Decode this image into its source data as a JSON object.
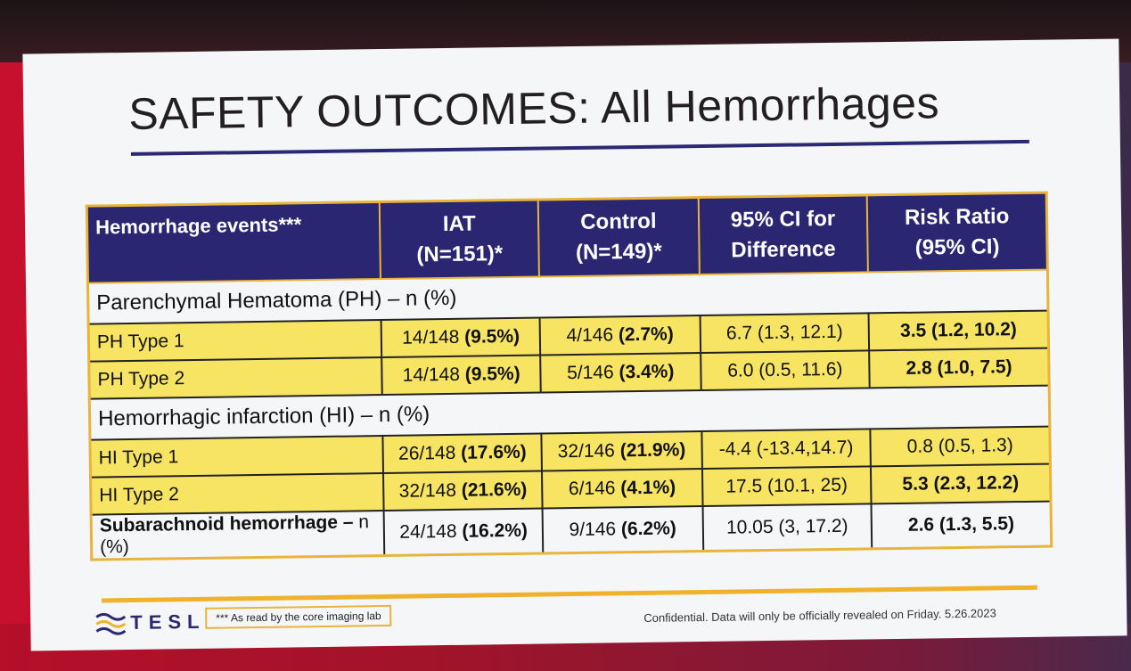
{
  "slide": {
    "title": "SAFETY OUTCOMES: All Hemorrhages",
    "colors": {
      "header_bg": "#2b2672",
      "row_yellow": "#f7e463",
      "accent_gold": "#e8b43a",
      "title_rule": "#2b2874"
    }
  },
  "table": {
    "headers": {
      "events": "Hemorrhage events***",
      "iat_line1": "IAT",
      "iat_line2": "(N=151)*",
      "control_line1": "Control",
      "control_line2": "(N=149)*",
      "ci_line1": "95% CI for",
      "ci_line2": "Difference",
      "rr_line1": "Risk Ratio",
      "rr_line2": "(95% CI)"
    },
    "section_ph": "Parenchymal Hematoma (PH) – n (%)",
    "ph_type1": {
      "label": "PH Type 1",
      "iat_n": "14/148 ",
      "iat_pct": "(9.5%)",
      "control_n": "4/146 ",
      "control_pct": "(2.7%)",
      "ci": "6.7 (1.3, 12.1)",
      "rr": "3.5 (1.2, 10.2)"
    },
    "ph_type2": {
      "label": "PH Type 2",
      "iat_n": "14/148 ",
      "iat_pct": "(9.5%)",
      "control_n": "5/146 ",
      "control_pct": "(3.4%)",
      "ci": "6.0 (0.5, 11.6)",
      "rr": "2.8 (1.0, 7.5)"
    },
    "section_hi": "Hemorrhagic infarction (HI) – n (%)",
    "hi_type1": {
      "label": "HI Type 1",
      "iat_n": "26/148 ",
      "iat_pct": "(17.6%)",
      "control_n": "32/146 ",
      "control_pct": "(21.9%)",
      "ci": "-4.4 (-13.4,14.7)",
      "rr": "0.8 (0.5, 1.3)"
    },
    "hi_type2": {
      "label": "HI Type 2",
      "iat_n": "32/148 ",
      "iat_pct": "(21.6%)",
      "control_n": "6/146 ",
      "control_pct": "(4.1%)",
      "ci": "17.5 (10.1, 25)",
      "rr": "5.3 (2.3, 12.2)"
    },
    "sah": {
      "label_bold": "Subarachnoid hemorrhage – ",
      "label_rest": "n (%)",
      "iat_n": "24/148 ",
      "iat_pct": "(16.2%)",
      "control_n": "9/146 ",
      "control_pct": "(6.2%)",
      "ci": "10.05 (3, 17.2)",
      "rr": "2.6 (1.3, 5.5)"
    }
  },
  "footer": {
    "logo_text": "TESLA",
    "footnote": "*** As read by the core imaging lab",
    "confidential": "Confidential. Data will only be officially revealed on Friday. 5.26.2023"
  }
}
